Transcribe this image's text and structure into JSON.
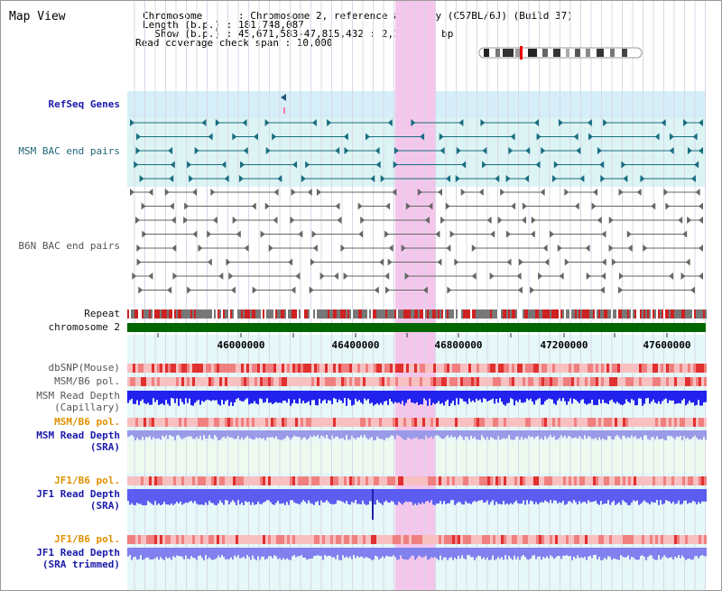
{
  "header": {
    "title": "Map View",
    "lines": [
      "Chromosome      : Chromosome 2, reference assembly (C57BL/6J) (Build 37)",
      "Length (b.p.) : 181,748,087",
      "  Show (b.p.) : 45,671,583-47,815,432 : 2,143,850 bp",
      "Read coverage check span : 10,000"
    ]
  },
  "tracks": {
    "refseq": "RefSeq Genes",
    "msm_bac": "MSM BAC end pairs",
    "b6n_bac": "B6N BAC end pairs",
    "repeat": "Repeat",
    "chromosome": "chromosome 2",
    "dbsnp": "dbSNP(Mouse)",
    "msm_b6_pol": "MSM/B6 pol.",
    "msm_read_depth_cap_1": "MSM Read Depth",
    "msm_read_depth_cap_2": "(Capillary)",
    "msm_b6_pol_sra": "MSM/B6 pol.",
    "msm_read_depth_sra_1": "MSM Read Depth",
    "msm_read_depth_sra_2": "(SRA)",
    "jf1_b6_pol_1": "JF1/B6 pol.",
    "jf1_read_depth_sra_1": "JF1 Read Depth",
    "jf1_read_depth_sra_2": "(SRA)",
    "jf1_b6_pol_2": "JF1/B6 pol.",
    "jf1_read_depth_trim_1": "JF1 Read Depth",
    "jf1_read_depth_trim_2": "(SRA trimmed)"
  },
  "axis": {
    "ticks": [
      "46000000",
      "46400000",
      "46800000",
      "47200000",
      "47600000"
    ]
  },
  "colors": {
    "highlight": "#f5c6ec",
    "refseq_band": "#d6eef8",
    "msm_band": "#dcf4f4",
    "gene_color": "#1a6d80",
    "chromosome_green": "#006600",
    "depth_blue": "#2222ee",
    "depth_light": "#8888ee",
    "pol_red": "#e03030"
  }
}
